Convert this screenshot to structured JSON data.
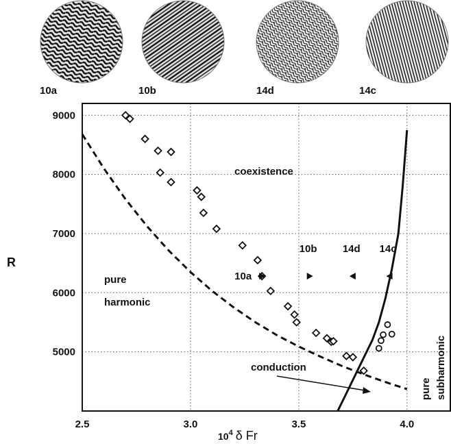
{
  "chart_data": {
    "type": "scatter",
    "xlabel_prefix": "10",
    "xlabel_exp": "4",
    "xlabel_rest": "δ Fr",
    "ylabel": "R",
    "xlim": [
      2.5,
      4.2
    ],
    "ylim": [
      4000,
      9200
    ],
    "x_ticks": [
      2.5,
      3.0,
      3.5,
      4.0
    ],
    "x_tick_labels": [
      "2.5",
      "3.0",
      "3.5",
      "4.0"
    ],
    "y_ticks": [
      5000,
      6000,
      7000,
      8000,
      9000
    ],
    "y_tick_labels": [
      "5000",
      "6000",
      "7000",
      "8000",
      "9000"
    ],
    "grid": true,
    "thumbnails": [
      "10a",
      "10b",
      "14d",
      "14c"
    ],
    "series": [
      {
        "marker": "diamond",
        "points": [
          [
            2.7,
            9000
          ],
          [
            2.72,
            8940
          ],
          [
            2.79,
            8600
          ],
          [
            2.85,
            8400
          ],
          [
            2.91,
            8380
          ],
          [
            2.86,
            8030
          ],
          [
            2.91,
            7870
          ],
          [
            3.03,
            7730
          ],
          [
            3.05,
            7620
          ],
          [
            3.06,
            7350
          ],
          [
            3.12,
            7080
          ],
          [
            3.24,
            6800
          ],
          [
            3.31,
            6550
          ],
          [
            3.33,
            6280
          ],
          [
            3.37,
            6030
          ],
          [
            3.45,
            5770
          ],
          [
            3.48,
            5630
          ],
          [
            3.49,
            5500
          ],
          [
            3.58,
            5320
          ],
          [
            3.63,
            5230
          ],
          [
            3.65,
            5170
          ],
          [
            3.66,
            5180
          ],
          [
            3.72,
            4930
          ],
          [
            3.75,
            4910
          ],
          [
            3.8,
            4680
          ]
        ]
      },
      {
        "marker": "circle",
        "points": [
          [
            3.87,
            5060
          ],
          [
            3.88,
            5190
          ],
          [
            3.89,
            5290
          ],
          [
            3.91,
            5460
          ],
          [
            3.93,
            5300
          ]
        ]
      }
    ],
    "curves": [
      {
        "style": "dashed",
        "points": [
          [
            2.5,
            8680
          ],
          [
            2.6,
            8100
          ],
          [
            2.7,
            7580
          ],
          [
            2.8,
            7120
          ],
          [
            2.9,
            6710
          ],
          [
            3.0,
            6350
          ],
          [
            3.1,
            6030
          ],
          [
            3.2,
            5750
          ],
          [
            3.3,
            5500
          ],
          [
            3.4,
            5280
          ],
          [
            3.5,
            5090
          ],
          [
            3.6,
            4920
          ],
          [
            3.7,
            4760
          ],
          [
            3.8,
            4620
          ],
          [
            3.9,
            4490
          ],
          [
            4.0,
            4370
          ]
        ]
      },
      {
        "style": "solid",
        "points": [
          [
            3.68,
            4000
          ],
          [
            3.72,
            4300
          ],
          [
            3.76,
            4600
          ],
          [
            3.8,
            4900
          ],
          [
            3.84,
            5200
          ],
          [
            3.87,
            5500
          ],
          [
            3.9,
            5900
          ],
          [
            3.93,
            6400
          ],
          [
            3.96,
            7000
          ],
          [
            3.98,
            7800
          ],
          [
            4.0,
            8750
          ]
        ]
      }
    ],
    "pattern_markers": [
      {
        "label": "10a",
        "x": 3.33,
        "y": 6280,
        "direction": "right"
      },
      {
        "label": "10b",
        "x": 3.55,
        "y": 6280,
        "direction": "right"
      },
      {
        "label": "14d",
        "x": 3.75,
        "y": 6280,
        "direction": "left"
      },
      {
        "label": "14c",
        "x": 3.92,
        "y": 6280,
        "direction": "left"
      }
    ],
    "annotations": {
      "coexistence": "coexistence",
      "pure_harmonic_1": "pure",
      "pure_harmonic_2": "harmonic",
      "conduction": "conduction",
      "pure_subharmonic_1": "pure",
      "pure_subharmonic_2": "subharmonic"
    }
  }
}
